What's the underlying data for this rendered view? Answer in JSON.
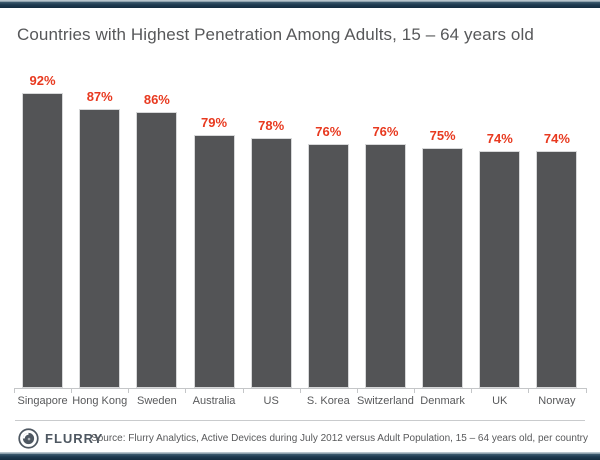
{
  "title": "Countries with Highest Penetration Among Adults, 15 – 64 years old",
  "chart_data": {
    "type": "bar",
    "title": "Countries with Highest Penetration Among Adults, 15 – 64 years old",
    "categories": [
      "Singapore",
      "Hong Kong",
      "Sweden",
      "Australia",
      "US",
      "S. Korea",
      "Switzerland",
      "Denmark",
      "UK",
      "Norway"
    ],
    "values": [
      92,
      87,
      86,
      79,
      78,
      76,
      76,
      75,
      74,
      74
    ],
    "value_labels": [
      "92%",
      "87%",
      "86%",
      "79%",
      "78%",
      "76%",
      "76%",
      "75%",
      "74%",
      "74%"
    ],
    "xlabel": "",
    "ylabel": "",
    "unit": "percent",
    "ylim": [
      0,
      100
    ],
    "grid": false,
    "legend": "none",
    "bar_color": "#535456",
    "value_label_color": "#e8391f"
  },
  "footer": {
    "brand": "FLURRY",
    "logo_icon": "flurry-swirl-icon",
    "source": "Source: Flurry Analytics, Active Devices during July 2012 versus Adult Population, 15 – 64 years old, per country"
  },
  "colors": {
    "accent_red": "#e8391f",
    "bar_gray": "#535456",
    "navy_border": "#1e3a50",
    "text_gray": "#58595b",
    "axis_gray": "#c4c6c8"
  }
}
